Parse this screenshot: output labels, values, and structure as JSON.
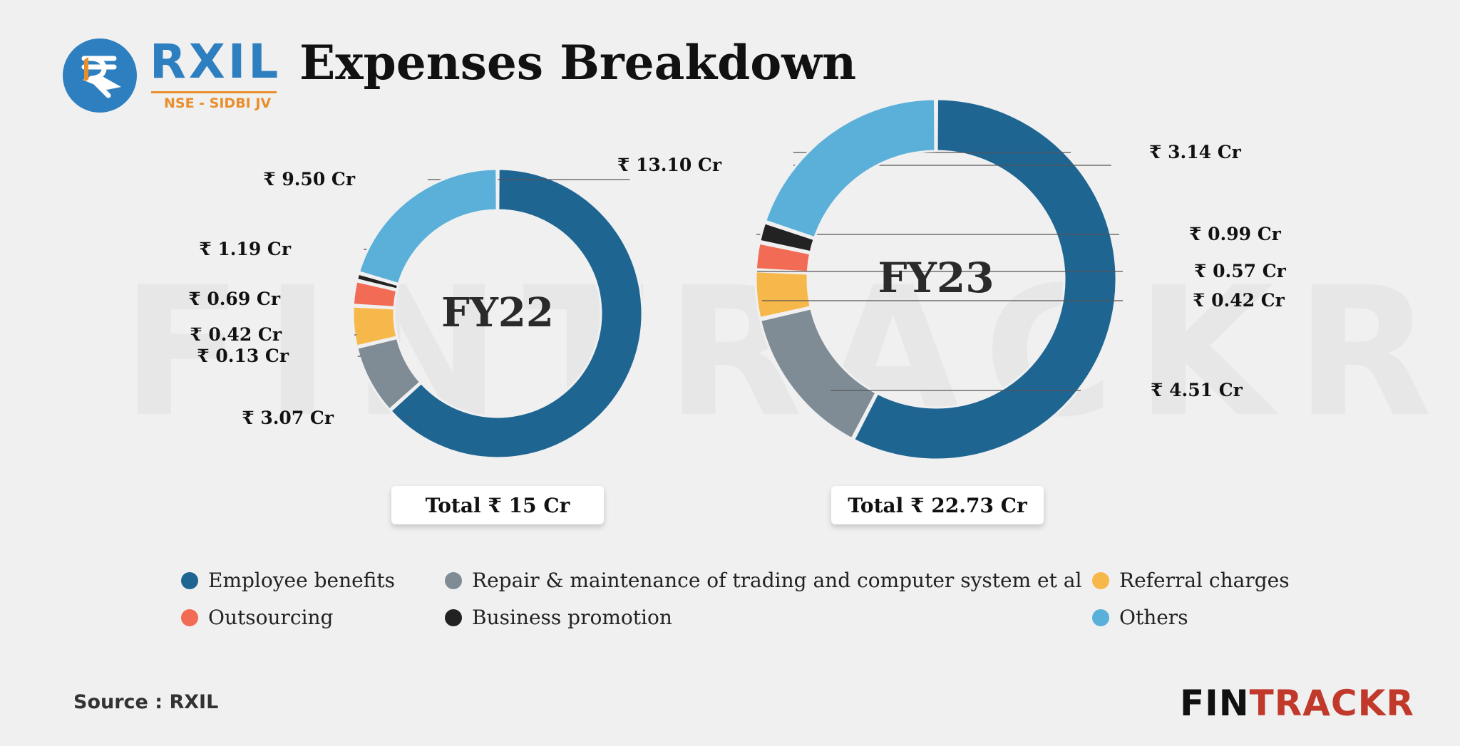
{
  "header": {
    "logo_text": "RXIL",
    "logo_subtext": "NSE - SIDBI JV",
    "title": "Expenses Breakdown"
  },
  "watermark": "FINTRACKR",
  "legend": [
    {
      "label": "Employee benefits",
      "color": "#1f6592"
    },
    {
      "label": "Repair & maintenance of trading and computer system et al",
      "color": "#7f8c95"
    },
    {
      "label": "Referral charges",
      "color": "#f7b84b"
    },
    {
      "label": "Outsourcing",
      "color": "#f26b55"
    },
    {
      "label": "Business promotion",
      "color": "#222222"
    },
    {
      "label": "Others",
      "color": "#5ab0d9"
    }
  ],
  "footer": {
    "source": "Source : RXIL",
    "brand_main": "FIN",
    "brand_accent": "TRACKR"
  },
  "chart_data": [
    {
      "type": "pie",
      "variant": "donut",
      "center_label": "FY22",
      "total_label": "Total ₹ 15 Cr",
      "categories": [
        "Employee benefits",
        "Repair & maintenance of trading and computer system et al",
        "Referral charges",
        "Outsourcing",
        "Business promotion",
        "Others"
      ],
      "values": [
        9.5,
        1.19,
        0.69,
        0.42,
        0.13,
        3.07
      ],
      "labels": [
        "₹ 9.50 Cr",
        "₹ 1.19 Cr",
        "₹ 0.69 Cr",
        "₹ 0.42 Cr",
        "₹ 0.13 Cr",
        "₹ 3.07 Cr"
      ],
      "unit": "Cr"
    },
    {
      "type": "pie",
      "variant": "donut",
      "center_label": "FY23",
      "total_label": "Total ₹ 22.73 Cr",
      "categories": [
        "Employee benefits",
        "Repair & maintenance of trading and computer system et al",
        "Referral charges",
        "Outsourcing",
        "Business promotion",
        "Others"
      ],
      "values": [
        13.1,
        3.14,
        0.99,
        0.57,
        0.42,
        4.51
      ],
      "labels": [
        "₹ 13.10 Cr",
        "₹ 3.14 Cr",
        "₹ 0.99 Cr",
        "₹ 0.57 Cr",
        "₹ 0.42 Cr",
        "₹ 4.51 Cr"
      ],
      "unit": "Cr"
    }
  ]
}
